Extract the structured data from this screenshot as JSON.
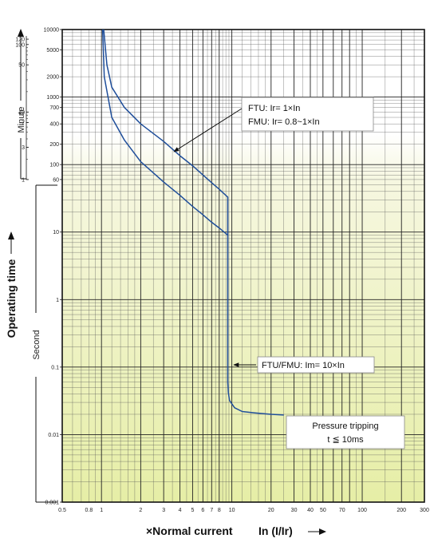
{
  "chart_data": {
    "type": "line",
    "x_scale": "log",
    "y_scale": "log",
    "xlim": [
      0.5,
      300
    ],
    "ylim": [
      0.001,
      10000
    ],
    "grid": true,
    "background": "yellow-green gradient toward bottom",
    "x_ticks": [
      {
        "v": 0.5,
        "t": "0.5"
      },
      {
        "v": 0.8,
        "t": "0.8"
      },
      {
        "v": 1,
        "t": "1"
      },
      {
        "v": 2,
        "t": "2"
      },
      {
        "v": 3,
        "t": "3"
      },
      {
        "v": 4,
        "t": "4"
      },
      {
        "v": 5,
        "t": "5"
      },
      {
        "v": 6,
        "t": "6"
      },
      {
        "v": 7,
        "t": "7"
      },
      {
        "v": 8,
        "t": "8"
      },
      {
        "v": 10,
        "t": "10"
      },
      {
        "v": 20,
        "t": "20"
      },
      {
        "v": 30,
        "t": "30"
      },
      {
        "v": 40,
        "t": "40"
      },
      {
        "v": 50,
        "t": "50"
      },
      {
        "v": 70,
        "t": "70"
      },
      {
        "v": 100,
        "t": "100"
      },
      {
        "v": 200,
        "t": "200"
      },
      {
        "v": 300,
        "t": "300"
      }
    ],
    "y_ticks_seconds": [
      {
        "v": 10000,
        "t": "10000"
      },
      {
        "v": 5000,
        "t": "5000"
      },
      {
        "v": 2000,
        "t": "2000"
      },
      {
        "v": 1000,
        "t": "1000"
      },
      {
        "v": 700,
        "t": "700"
      },
      {
        "v": 400,
        "t": "400"
      },
      {
        "v": 200,
        "t": "200"
      },
      {
        "v": 100,
        "t": "100"
      },
      {
        "v": 60,
        "t": "60"
      },
      {
        "v": 10,
        "t": "10"
      },
      {
        "v": 1,
        "t": "1"
      },
      {
        "v": 0.1,
        "t": "0.1"
      },
      {
        "v": 0.01,
        "t": "0.01"
      },
      {
        "v": 0.001,
        "t": "0.001"
      }
    ],
    "y_ticks_minutes": [
      {
        "v": 120,
        "t": "120"
      },
      {
        "v": 100,
        "t": "100"
      },
      {
        "v": 50,
        "t": "50"
      },
      {
        "v": 10,
        "t": "10"
      },
      {
        "v": 7,
        "t": "7"
      },
      {
        "v": 3,
        "t": "3"
      },
      {
        "v": 1,
        "t": "1"
      }
    ],
    "series": [
      {
        "color": "#1f4e9a",
        "points": [
          [
            1.04,
            10000
          ],
          [
            1.1,
            3000
          ],
          [
            1.2,
            1400
          ],
          [
            1.5,
            700
          ],
          [
            2,
            400
          ],
          [
            3,
            220
          ],
          [
            4,
            135
          ],
          [
            5,
            96
          ],
          [
            6,
            70
          ],
          [
            7,
            54
          ],
          [
            8,
            43
          ],
          [
            9.3,
            33
          ],
          [
            9.3,
            0.06
          ],
          [
            9.4,
            0.042
          ],
          [
            9.6,
            0.032
          ],
          [
            10.5,
            0.025
          ],
          [
            12,
            0.022
          ],
          [
            15,
            0.021
          ],
          [
            20,
            0.02
          ],
          [
            25,
            0.0195
          ]
        ]
      },
      {
        "color": "#1f4e9a",
        "points": [
          [
            1.02,
            10000
          ],
          [
            1.05,
            2000
          ],
          [
            1.2,
            500
          ],
          [
            1.5,
            230
          ],
          [
            2,
            110
          ],
          [
            3,
            55
          ],
          [
            4,
            35
          ],
          [
            5,
            24
          ],
          [
            6,
            18
          ],
          [
            7,
            14
          ],
          [
            8,
            11.5
          ],
          [
            9.3,
            9
          ]
        ]
      }
    ],
    "annotations": [
      {
        "lines": [
          "FTU: Ir= 1×In",
          "FMU: Ir= 0.8~1×In"
        ]
      },
      {
        "lines": [
          "FTU/FMU: Im= 10×In"
        ]
      },
      {
        "lines": [
          "Pressure tripping",
          "t ≦ 10ms"
        ]
      }
    ],
    "y_group_labels": {
      "minute": "Minute",
      "second": "Second",
      "main": "Operating time"
    },
    "x_axis_label": {
      "part1": "×Normal current",
      "part2": "In (I/Ir)"
    }
  }
}
